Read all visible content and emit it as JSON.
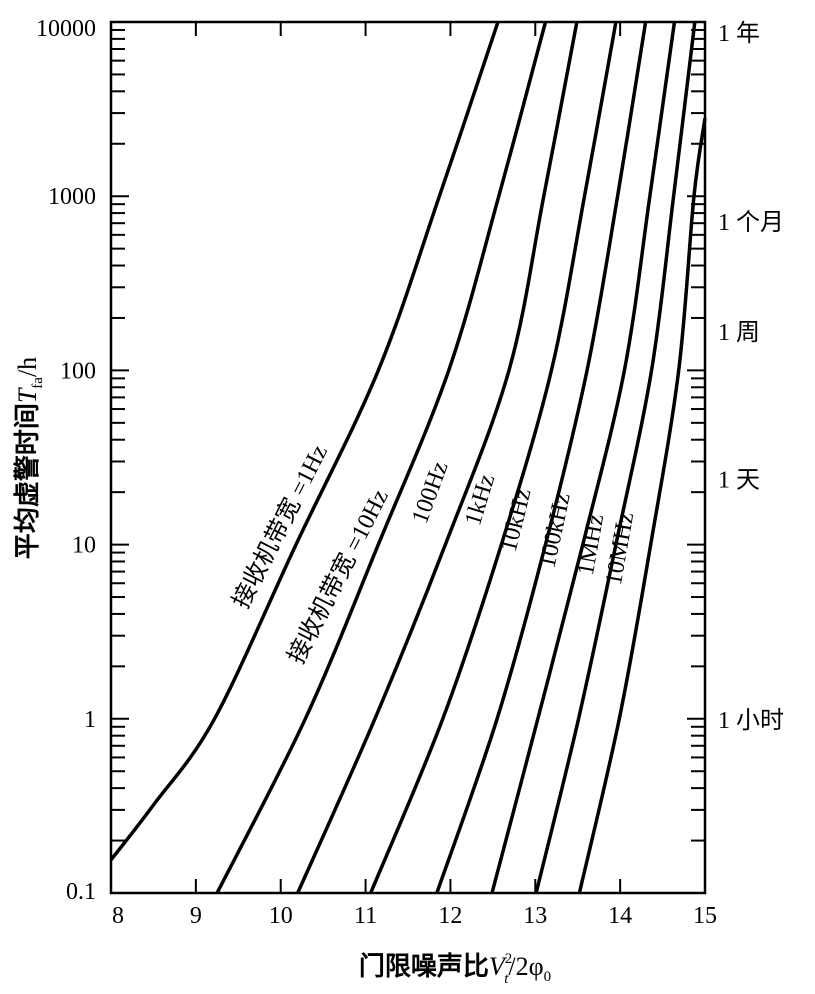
{
  "chart_data": {
    "type": "line",
    "title": "",
    "xlabel": "门限噪声比",
    "xlabel_math": {
      "base": "V",
      "sup": "2",
      "sub": "t",
      "rest": "/2φ",
      "rest_sub": "0"
    },
    "ylabel": "平均虚警时间",
    "ylabel_math": {
      "base": "T",
      "sub": "fa",
      "rest": "/h"
    },
    "xlim": [
      8,
      15
    ],
    "ylim": [
      0.1,
      10000
    ],
    "yscale": "log",
    "x_ticks": [
      "8",
      "9",
      "10",
      "11",
      "12",
      "13",
      "14",
      "15"
    ],
    "y_ticks": [
      "0.1",
      "1",
      "10",
      "100",
      "1000",
      "10000"
    ],
    "y_tick_values": [
      0.1,
      1,
      10,
      100,
      1000,
      10000
    ],
    "right_axis_labels": [
      {
        "text": "1 年",
        "value": 8760
      },
      {
        "text": "1 个月",
        "value": 720
      },
      {
        "text": "1 周",
        "value": 168
      },
      {
        "text": "1 天",
        "value": 24
      },
      {
        "text": "1 小时",
        "value": 1
      }
    ],
    "grid": false,
    "series": [
      {
        "name": "接收机带宽 =1Hz",
        "points": [
          [
            8,
            0.155
          ],
          [
            8.5,
            0.32
          ],
          [
            9.22,
            1
          ],
          [
            10.18,
            10
          ],
          [
            11.15,
            100
          ],
          [
            11.87,
            1000
          ],
          [
            12.56,
            10000
          ]
        ]
      },
      {
        "name": "接收机带宽 =10Hz",
        "points": [
          [
            9.25,
            0.1
          ],
          [
            10.29,
            1
          ],
          [
            11.15,
            10
          ],
          [
            11.98,
            100
          ],
          [
            12.57,
            1000
          ],
          [
            13.12,
            10000
          ]
        ]
      },
      {
        "name": "100Hz",
        "points": [
          [
            10.2,
            0.1
          ],
          [
            11.11,
            1
          ],
          [
            11.94,
            10
          ],
          [
            12.69,
            100
          ],
          [
            13.1,
            1000
          ],
          [
            13.49,
            10000
          ]
        ]
      },
      {
        "name": "1kHz",
        "points": [
          [
            11.06,
            0.1
          ],
          [
            11.91,
            1
          ],
          [
            12.6,
            10
          ],
          [
            13.19,
            100
          ],
          [
            13.58,
            1000
          ],
          [
            13.95,
            10000
          ]
        ]
      },
      {
        "name": "10kHz",
        "points": [
          [
            11.84,
            0.1
          ],
          [
            12.55,
            1
          ],
          [
            13.12,
            10
          ],
          [
            13.61,
            100
          ],
          [
            13.97,
            1000
          ],
          [
            14.3,
            10000
          ]
        ]
      },
      {
        "name": "100kHz",
        "points": [
          [
            12.49,
            0.1
          ],
          [
            13.03,
            1
          ],
          [
            13.56,
            10
          ],
          [
            14.05,
            100
          ],
          [
            14.35,
            1000
          ],
          [
            14.64,
            10000
          ]
        ]
      },
      {
        "name": "1MHz",
        "points": [
          [
            13.01,
            0.1
          ],
          [
            13.51,
            1
          ],
          [
            13.95,
            10
          ],
          [
            14.37,
            100
          ],
          [
            14.63,
            1000
          ],
          [
            14.88,
            10000
          ]
        ]
      },
      {
        "name": "10MHz",
        "points": [
          [
            13.52,
            0.1
          ],
          [
            13.99,
            1
          ],
          [
            14.36,
            10
          ],
          [
            14.69,
            100
          ],
          [
            14.87,
            1000
          ],
          [
            15,
            2800
          ]
        ]
      }
    ]
  }
}
